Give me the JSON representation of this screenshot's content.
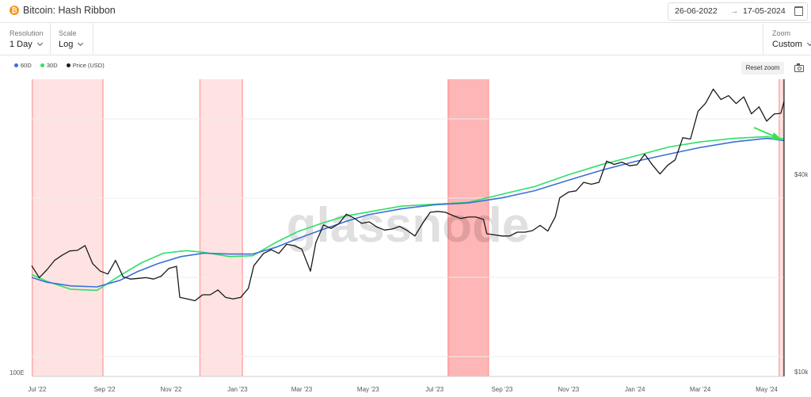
{
  "header": {
    "title": "Bitcoin: Hash Ribbon",
    "icon": "bitcoin-icon"
  },
  "date_range": {
    "start": "26-06-2022",
    "arrow": "→",
    "end": "17-05-2024",
    "icon": "calendar-icon"
  },
  "controls": {
    "resolution": {
      "label": "Resolution",
      "value": "1 Day"
    },
    "scale": {
      "label": "Scale",
      "value": "Log"
    },
    "zoom": {
      "label": "Zoom",
      "value": "Custom"
    }
  },
  "toolbar": {
    "reset_zoom": "Reset zoom",
    "camera_icon": "camera-icon"
  },
  "watermark": "glassnode",
  "colors": {
    "ma60": "#3b6fd8",
    "ma30": "#2ee068",
    "price": "#1a1a1a",
    "capitulation": "#ff8f8f",
    "arrow": "#39e051"
  },
  "chart_data": {
    "type": "line",
    "title": "Bitcoin: Hash Ribbon",
    "y_scale": "log",
    "legend_placement": "top-left",
    "x_ticks": [
      "Jul '22",
      "Sep '22",
      "Nov '22",
      "Jan '23",
      "Mar '23",
      "May '23",
      "Jul '23",
      "Sep '23",
      "Nov '23",
      "Jan '24",
      "Mar '24",
      "May '24"
    ],
    "x_tick_dates": [
      "2022-07-01",
      "2022-09-01",
      "2022-11-01",
      "2023-01-01",
      "2023-03-01",
      "2023-05-01",
      "2023-07-01",
      "2023-09-01",
      "2023-11-01",
      "2024-01-01",
      "2024-03-01",
      "2024-05-01"
    ],
    "x_range": [
      "2022-06-26",
      "2024-05-17"
    ],
    "left_axis": {
      "ticks": [
        "100E"
      ]
    },
    "right_axis": {
      "name": "Price (USD)",
      "ticks": [
        "$40k",
        "$10k"
      ]
    },
    "capitulation_periods": [
      {
        "start": "2022-06-26",
        "end": "2022-08-31",
        "intensity": 0.25
      },
      {
        "start": "2022-11-27",
        "end": "2023-01-06",
        "intensity": 0.25
      },
      {
        "start": "2023-07-13",
        "end": "2023-08-20",
        "intensity": 0.65
      },
      {
        "start": "2024-05-12",
        "end": "2024-05-17",
        "intensity": 0.25
      }
    ],
    "series": [
      {
        "name": "60D",
        "color": "#3b6fd8",
        "points": [
          [
            "2022-06-26",
            9.4
          ],
          [
            "2022-07-10",
            9.15
          ],
          [
            "2022-08-01",
            8.97
          ],
          [
            "2022-08-25",
            8.92
          ],
          [
            "2022-09-15",
            9.25
          ],
          [
            "2022-10-01",
            9.7
          ],
          [
            "2022-10-20",
            10.15
          ],
          [
            "2022-11-10",
            10.55
          ],
          [
            "2022-12-01",
            10.75
          ],
          [
            "2022-12-25",
            10.7
          ],
          [
            "2023-01-15",
            10.7
          ],
          [
            "2023-02-05",
            11.1
          ],
          [
            "2023-02-25",
            11.65
          ],
          [
            "2023-03-20",
            12.25
          ],
          [
            "2023-04-10",
            12.8
          ],
          [
            "2023-05-01",
            13.3
          ],
          [
            "2023-06-01",
            13.75
          ],
          [
            "2023-07-01",
            14.05
          ],
          [
            "2023-08-01",
            14.2
          ],
          [
            "2023-09-01",
            14.6
          ],
          [
            "2023-10-01",
            15.2
          ],
          [
            "2023-11-01",
            16.1
          ],
          [
            "2023-12-01",
            17.0
          ],
          [
            "2024-01-01",
            17.85
          ],
          [
            "2024-02-01",
            18.6
          ],
          [
            "2024-03-01",
            19.3
          ],
          [
            "2024-04-01",
            19.9
          ],
          [
            "2024-05-01",
            20.3
          ],
          [
            "2024-05-17",
            20.05
          ]
        ]
      },
      {
        "name": "30D",
        "color": "#2ee068",
        "points": [
          [
            "2022-06-26",
            9.55
          ],
          [
            "2022-07-10",
            9.2
          ],
          [
            "2022-08-01",
            8.8
          ],
          [
            "2022-08-25",
            8.75
          ],
          [
            "2022-09-15",
            9.5
          ],
          [
            "2022-10-05",
            10.2
          ],
          [
            "2022-10-25",
            10.75
          ],
          [
            "2022-11-15",
            10.9
          ],
          [
            "2022-12-01",
            10.8
          ],
          [
            "2022-12-25",
            10.55
          ],
          [
            "2023-01-15",
            10.6
          ],
          [
            "2023-02-05",
            11.4
          ],
          [
            "2023-02-25",
            12.1
          ],
          [
            "2023-03-20",
            12.7
          ],
          [
            "2023-04-10",
            13.2
          ],
          [
            "2023-05-01",
            13.5
          ],
          [
            "2023-06-01",
            13.95
          ],
          [
            "2023-07-01",
            14.1
          ],
          [
            "2023-08-01",
            14.25
          ],
          [
            "2023-09-01",
            14.9
          ],
          [
            "2023-10-01",
            15.55
          ],
          [
            "2023-11-01",
            16.6
          ],
          [
            "2023-12-01",
            17.55
          ],
          [
            "2024-01-01",
            18.4
          ],
          [
            "2024-02-01",
            19.35
          ],
          [
            "2024-03-01",
            19.9
          ],
          [
            "2024-04-01",
            20.3
          ],
          [
            "2024-05-01",
            20.5
          ],
          [
            "2024-05-17",
            20.25
          ]
        ]
      },
      {
        "name": "Price (USD)",
        "color": "#1a1a1a",
        "points": [
          [
            "2022-06-26",
            21000
          ],
          [
            "2022-07-03",
            19300
          ],
          [
            "2022-07-10",
            20400
          ],
          [
            "2022-07-17",
            21800
          ],
          [
            "2022-07-24",
            22600
          ],
          [
            "2022-07-31",
            23300
          ],
          [
            "2022-08-07",
            23400
          ],
          [
            "2022-08-14",
            24200
          ],
          [
            "2022-08-21",
            21300
          ],
          [
            "2022-08-28",
            20200
          ],
          [
            "2022-09-04",
            19800
          ],
          [
            "2022-09-11",
            21800
          ],
          [
            "2022-09-18",
            19400
          ],
          [
            "2022-09-25",
            19100
          ],
          [
            "2022-10-02",
            19200
          ],
          [
            "2022-10-09",
            19300
          ],
          [
            "2022-10-16",
            19100
          ],
          [
            "2022-10-23",
            19500
          ],
          [
            "2022-10-30",
            20600
          ],
          [
            "2022-11-06",
            20900
          ],
          [
            "2022-11-09",
            16800
          ],
          [
            "2022-11-16",
            16600
          ],
          [
            "2022-11-23",
            16400
          ],
          [
            "2022-11-30",
            17100
          ],
          [
            "2022-12-07",
            17100
          ],
          [
            "2022-12-14",
            17700
          ],
          [
            "2022-12-21",
            16800
          ],
          [
            "2022-12-28",
            16600
          ],
          [
            "2023-01-04",
            16800
          ],
          [
            "2023-01-11",
            17900
          ],
          [
            "2023-01-16",
            21000
          ],
          [
            "2023-01-25",
            22900
          ],
          [
            "2023-02-01",
            23500
          ],
          [
            "2023-02-08",
            22900
          ],
          [
            "2023-02-15",
            24400
          ],
          [
            "2023-02-22",
            24200
          ],
          [
            "2023-03-01",
            23600
          ],
          [
            "2023-03-09",
            20200
          ],
          [
            "2023-03-14",
            24700
          ],
          [
            "2023-03-21",
            28000
          ],
          [
            "2023-03-28",
            27300
          ],
          [
            "2023-04-04",
            28200
          ],
          [
            "2023-04-11",
            30200
          ],
          [
            "2023-04-18",
            29400
          ],
          [
            "2023-04-25",
            28300
          ],
          [
            "2023-05-02",
            28600
          ],
          [
            "2023-05-09",
            27600
          ],
          [
            "2023-05-16",
            27000
          ],
          [
            "2023-05-23",
            27200
          ],
          [
            "2023-05-30",
            27700
          ],
          [
            "2023-06-06",
            26900
          ],
          [
            "2023-06-13",
            25900
          ],
          [
            "2023-06-20",
            28300
          ],
          [
            "2023-06-27",
            30600
          ],
          [
            "2023-07-04",
            30800
          ],
          [
            "2023-07-11",
            30600
          ],
          [
            "2023-07-18",
            29900
          ],
          [
            "2023-07-25",
            29300
          ],
          [
            "2023-08-01",
            29600
          ],
          [
            "2023-08-08",
            29600
          ],
          [
            "2023-08-15",
            29100
          ],
          [
            "2023-08-18",
            26300
          ],
          [
            "2023-08-25",
            26100
          ],
          [
            "2023-09-01",
            25900
          ],
          [
            "2023-09-08",
            25900
          ],
          [
            "2023-09-15",
            26600
          ],
          [
            "2023-09-22",
            26600
          ],
          [
            "2023-09-29",
            26900
          ],
          [
            "2023-10-06",
            27900
          ],
          [
            "2023-10-13",
            26800
          ],
          [
            "2023-10-20",
            29700
          ],
          [
            "2023-10-24",
            33900
          ],
          [
            "2023-11-01",
            35300
          ],
          [
            "2023-11-08",
            35600
          ],
          [
            "2023-11-15",
            37800
          ],
          [
            "2023-11-22",
            37300
          ],
          [
            "2023-11-29",
            37800
          ],
          [
            "2023-12-06",
            43900
          ],
          [
            "2023-12-13",
            42900
          ],
          [
            "2023-12-20",
            43600
          ],
          [
            "2023-12-27",
            42500
          ],
          [
            "2024-01-03",
            42800
          ],
          [
            "2024-01-10",
            46100
          ],
          [
            "2024-01-17",
            42800
          ],
          [
            "2024-01-24",
            40100
          ],
          [
            "2024-01-31",
            42600
          ],
          [
            "2024-02-07",
            44300
          ],
          [
            "2024-02-14",
            51800
          ],
          [
            "2024-02-21",
            51300
          ],
          [
            "2024-02-28",
            62400
          ],
          [
            "2024-03-06",
            66100
          ],
          [
            "2024-03-13",
            73000
          ],
          [
            "2024-03-20",
            67800
          ],
          [
            "2024-03-27",
            69700
          ],
          [
            "2024-04-03",
            65900
          ],
          [
            "2024-04-10",
            69100
          ],
          [
            "2024-04-17",
            61300
          ],
          [
            "2024-04-24",
            64400
          ],
          [
            "2024-05-01",
            58200
          ],
          [
            "2024-05-08",
            61200
          ],
          [
            "2024-05-14",
            61500
          ],
          [
            "2024-05-17",
            66900
          ]
        ]
      }
    ]
  }
}
